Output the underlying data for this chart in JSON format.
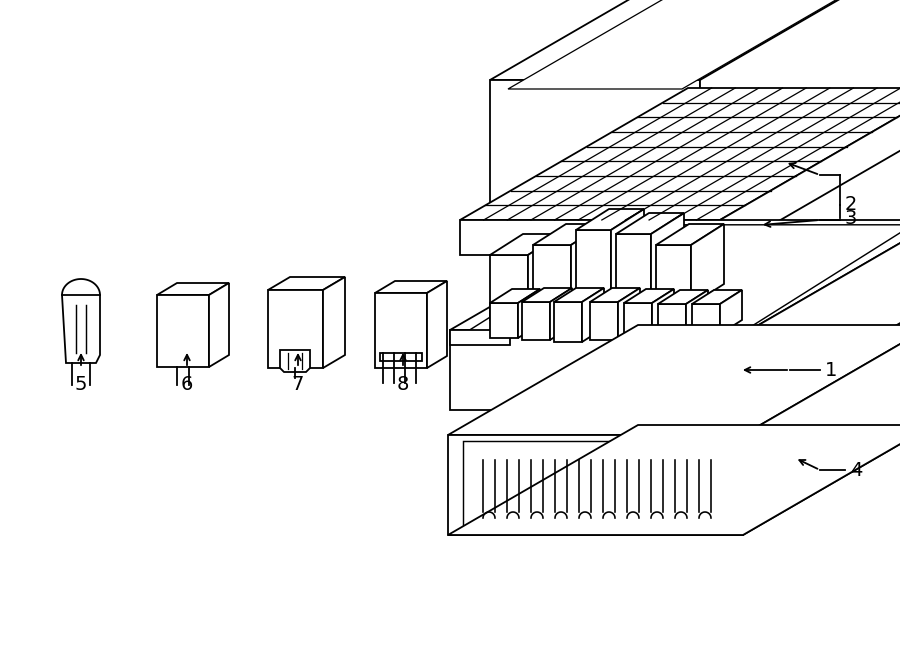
{
  "bg_color": "#ffffff",
  "lc": "#000000",
  "lw": 1.3,
  "fig_w": 9.0,
  "fig_h": 6.61,
  "dpi": 100
}
